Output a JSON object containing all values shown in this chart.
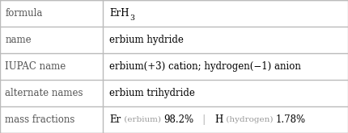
{
  "rows": [
    {
      "label": "formula",
      "value": "ErH_3"
    },
    {
      "label": "name",
      "value": "erbium hydride"
    },
    {
      "label": "IUPAC name",
      "value": "erbium(+3) cation; hydrogen(−1) anion"
    },
    {
      "label": "alternate names",
      "value": "erbium trihydride"
    },
    {
      "label": "mass fractions",
      "value": "mass_fractions_special"
    }
  ],
  "col_split": 0.295,
  "bg_color": "#ffffff",
  "label_color": "#555555",
  "value_color": "#000000",
  "line_color": "#bbbbbb",
  "font_size": 8.5,
  "mass_fractions": {
    "er_symbol": "Er",
    "er_label": " (erbium) ",
    "er_pct": "98.2%",
    "sep": "   |   ",
    "h_symbol": "H",
    "h_label": " (hydrogen) ",
    "h_pct": "1.78%",
    "symbol_color": "#000000",
    "label_color": "#999999",
    "pct_color": "#000000"
  }
}
